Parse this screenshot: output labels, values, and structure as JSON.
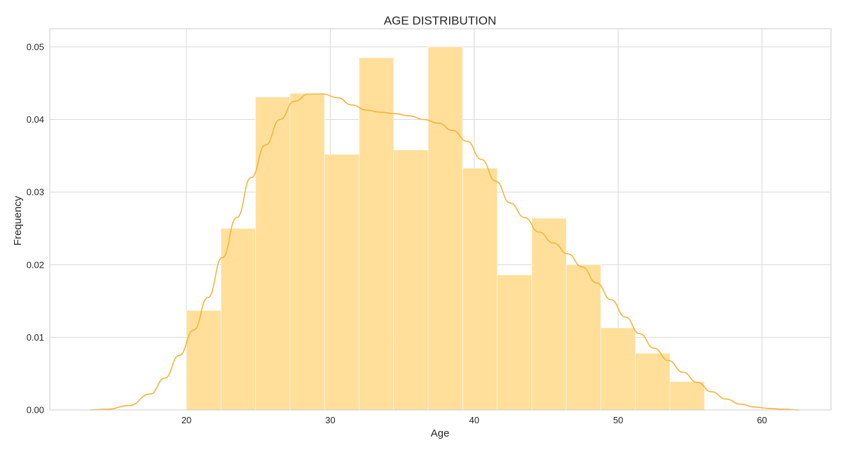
{
  "chart_data": {
    "type": "bar",
    "title": "AGE DISTRIBUTION",
    "xlabel": "Age",
    "ylabel": "Frequency",
    "xlim": [
      10.5,
      64.8
    ],
    "ylim": [
      0,
      0.0525
    ],
    "xticks": [
      20,
      30,
      40,
      50,
      60
    ],
    "xtick_labels": [
      "20",
      "30",
      "40",
      "50",
      "60"
    ],
    "yticks": [
      0.0,
      0.01,
      0.02,
      0.03,
      0.04,
      0.05
    ],
    "ytick_labels": [
      "0.00",
      "0.01",
      "0.02",
      "0.03",
      "0.04",
      "0.05"
    ],
    "grid": true,
    "histogram": {
      "bin_edges": [
        20,
        22.4,
        24.8,
        27.2,
        29.6,
        32.0,
        34.4,
        36.8,
        39.2,
        41.6,
        44.0,
        46.4,
        48.8,
        51.2,
        53.6,
        56.0
      ],
      "values": [
        0.0137,
        0.025,
        0.0431,
        0.0436,
        0.0352,
        0.0485,
        0.0358,
        0.05,
        0.0333,
        0.0186,
        0.0264,
        0.02,
        0.0113,
        0.0078,
        0.0039
      ],
      "color": "#ffdf9a"
    },
    "kde": {
      "x": [
        13.3,
        14.5,
        16,
        17.5,
        18.5,
        19.5,
        20.5,
        21.5,
        22.5,
        23.5,
        24.5,
        25.5,
        26.5,
        27.5,
        28.5,
        29.5,
        30.5,
        31.5,
        32.5,
        33.5,
        34.5,
        35.5,
        36.5,
        37.5,
        38.5,
        39.5,
        40.5,
        41.5,
        42.5,
        43.5,
        44.5,
        45.5,
        46.5,
        47.5,
        48.5,
        49.5,
        50.5,
        51.5,
        52.5,
        53.5,
        54.5,
        55.5,
        56.5,
        57.5,
        58.5,
        59.5,
        60.5,
        61.5,
        62.6
      ],
      "y": [
        0.0,
        0.0001,
        0.0006,
        0.0022,
        0.0044,
        0.0075,
        0.011,
        0.0155,
        0.021,
        0.0265,
        0.032,
        0.0365,
        0.04,
        0.0425,
        0.0435,
        0.0435,
        0.043,
        0.042,
        0.0413,
        0.041,
        0.0408,
        0.0405,
        0.04,
        0.0395,
        0.0385,
        0.037,
        0.0345,
        0.0315,
        0.0285,
        0.0265,
        0.0245,
        0.023,
        0.0215,
        0.0197,
        0.0175,
        0.0152,
        0.0128,
        0.0105,
        0.0085,
        0.0068,
        0.0052,
        0.0038,
        0.0025,
        0.0015,
        0.0008,
        0.0004,
        0.0002,
        0.0001,
        0.0
      ],
      "color": "#f2b53b"
    }
  }
}
